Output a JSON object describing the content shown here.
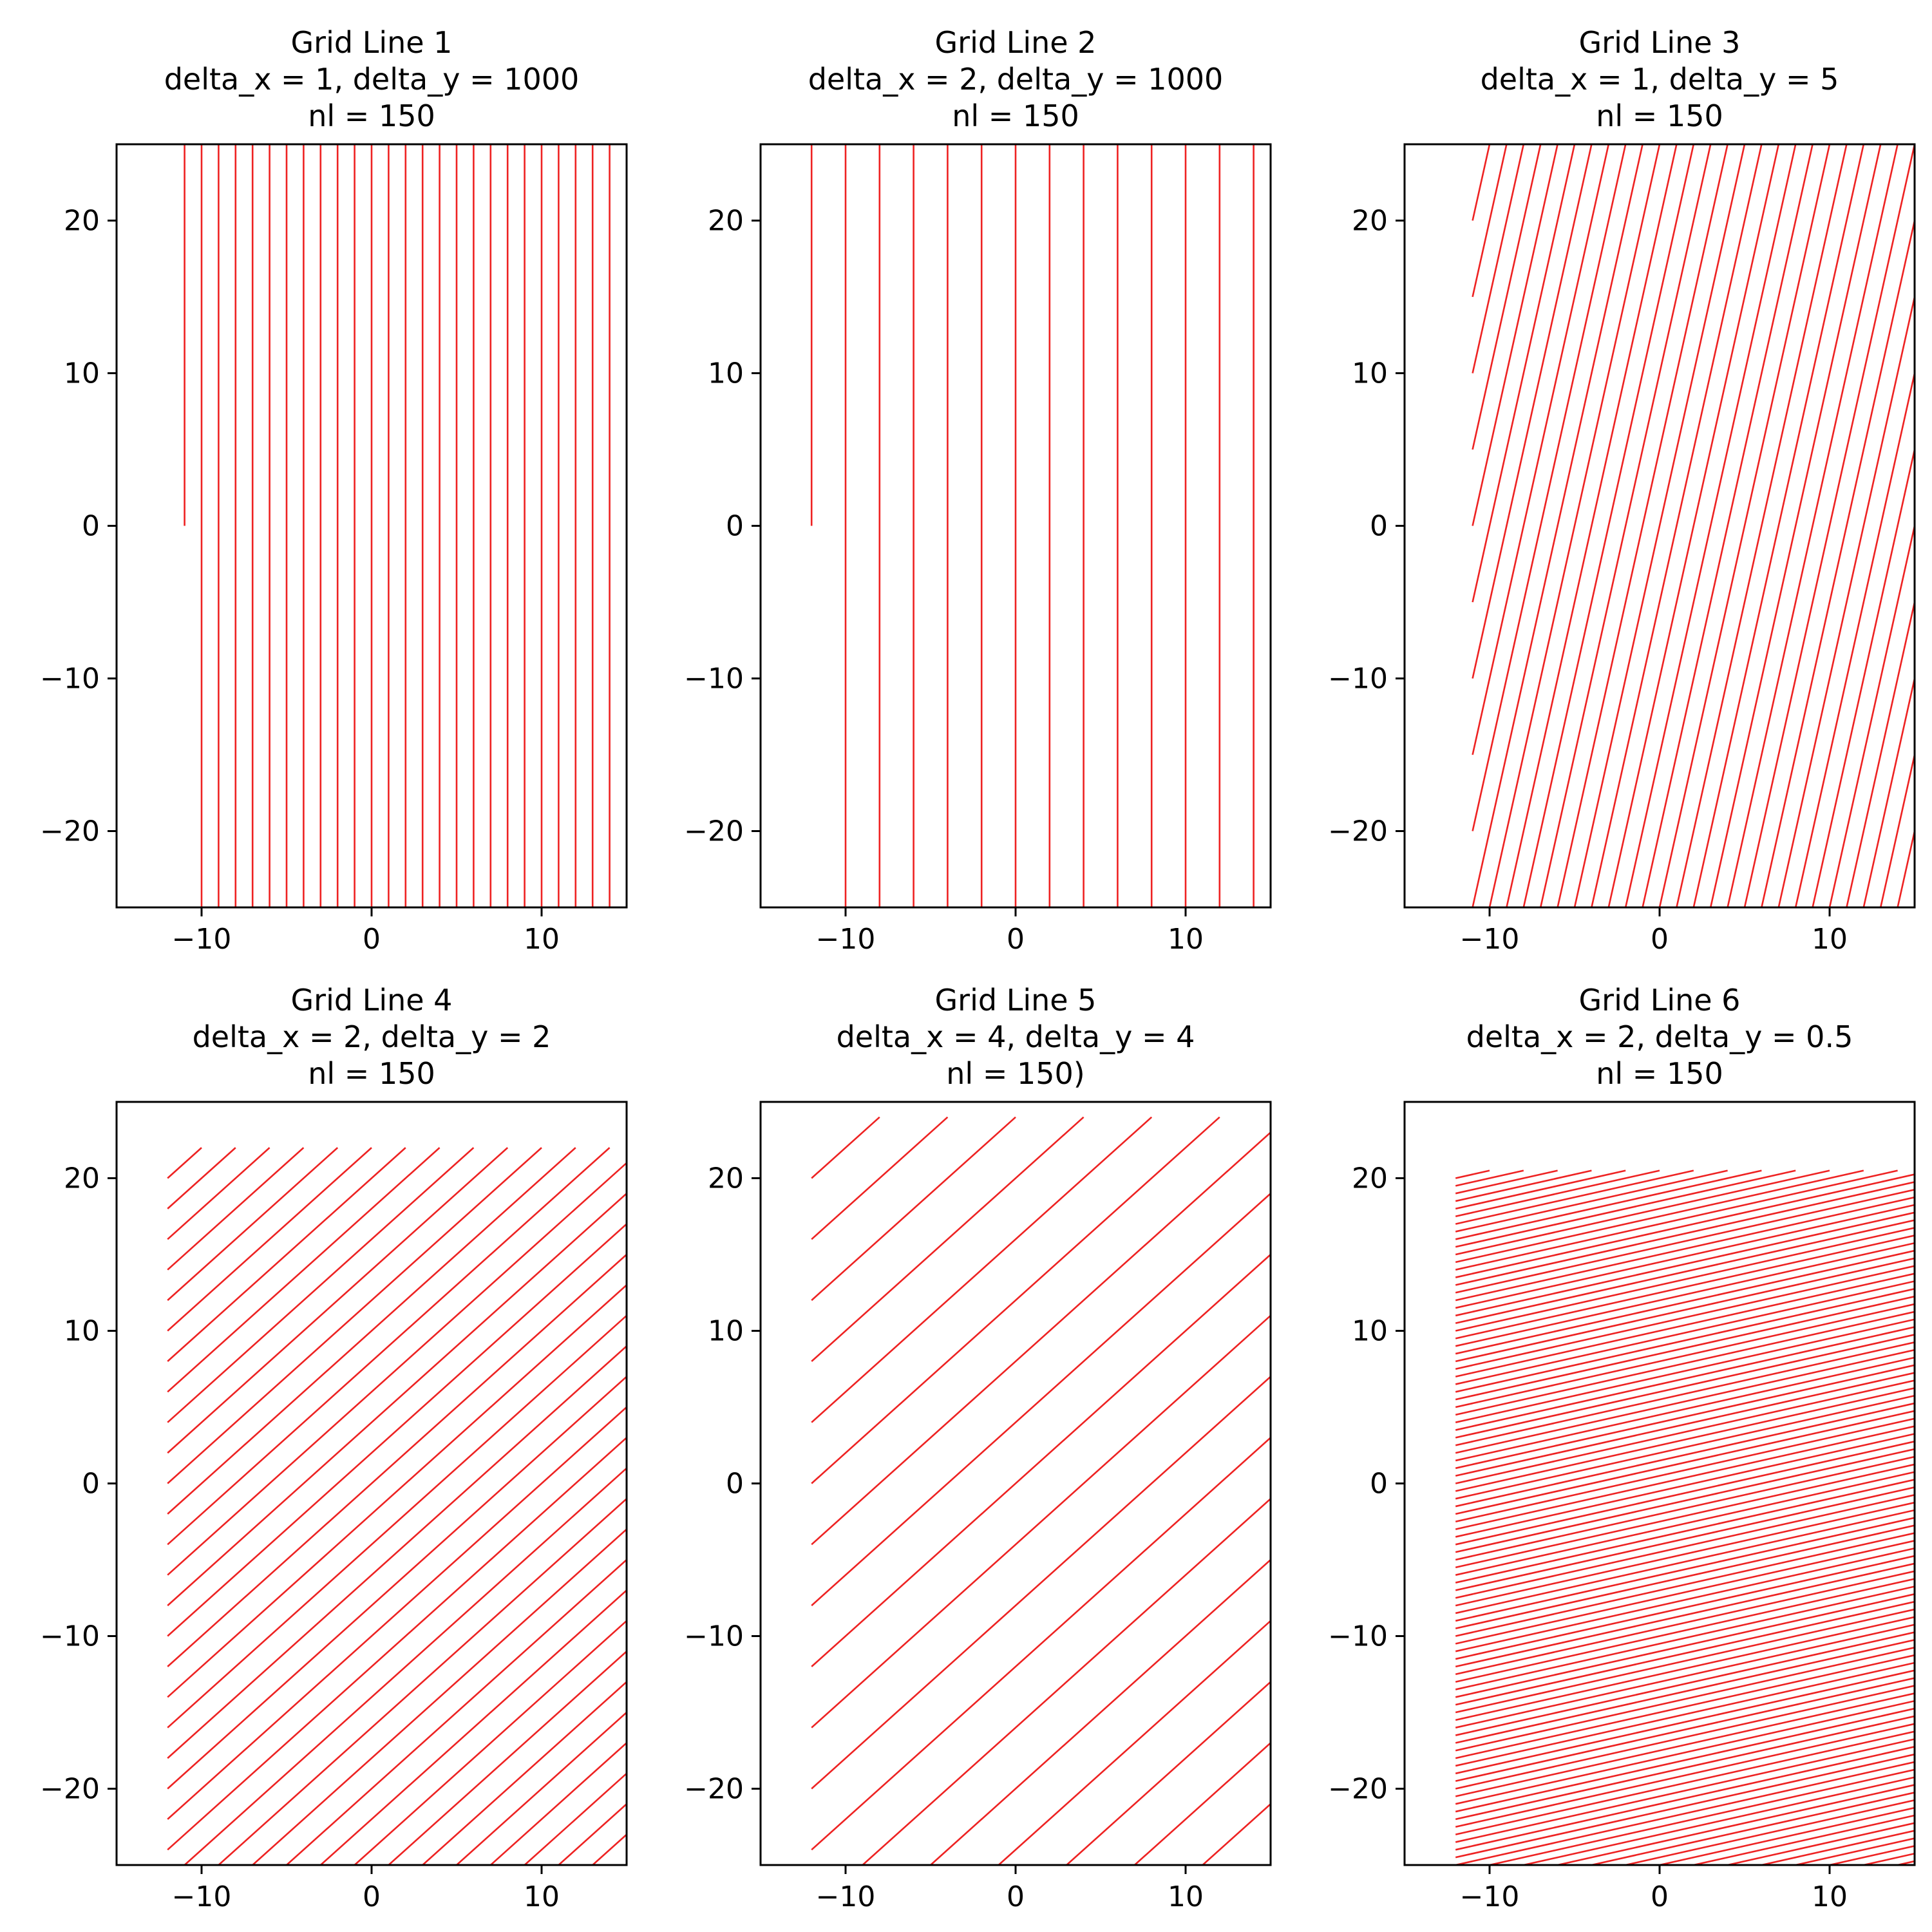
{
  "chart_data": [
    {
      "type": "line",
      "title": [
        "Grid Line 1",
        "delta_x = 1, delta_y = 1000",
        "nl = 150"
      ],
      "xlim": [
        -15,
        15
      ],
      "ylim": [
        -25,
        25
      ],
      "xticks": [
        {
          "value": -10,
          "label": "−10"
        },
        {
          "value": 0,
          "label": "0"
        },
        {
          "value": 10,
          "label": "10"
        }
      ],
      "yticks": [
        {
          "value": -20,
          "label": "−20"
        },
        {
          "value": -10,
          "label": "−10"
        },
        {
          "value": 0,
          "label": "0"
        },
        {
          "value": 10,
          "label": "10"
        },
        {
          "value": 20,
          "label": "20"
        }
      ],
      "line_color": "#ee2222",
      "grid": {
        "x0": -11,
        "y0": 0,
        "y_max": 25,
        "delta_x": 1,
        "delta_y": 1000,
        "x_max": 15
      },
      "grid_on": false
    },
    {
      "type": "line",
      "title": [
        "Grid Line 2",
        "delta_x = 2, delta_y = 1000",
        "nl = 150"
      ],
      "xlim": [
        -15,
        15
      ],
      "ylim": [
        -25,
        25
      ],
      "xticks": [
        {
          "value": -10,
          "label": "−10"
        },
        {
          "value": 0,
          "label": "0"
        },
        {
          "value": 10,
          "label": "10"
        }
      ],
      "yticks": [
        {
          "value": -20,
          "label": "−20"
        },
        {
          "value": -10,
          "label": "−10"
        },
        {
          "value": 0,
          "label": "0"
        },
        {
          "value": 10,
          "label": "10"
        },
        {
          "value": 20,
          "label": "20"
        }
      ],
      "line_color": "#ee2222",
      "grid": {
        "x0": -12,
        "y0": 0,
        "y_max": 25,
        "delta_x": 2,
        "delta_y": 1000,
        "x_max": 15
      },
      "grid_on": false
    },
    {
      "type": "line",
      "title": [
        "Grid Line 3",
        "delta_x = 1, delta_y = 5",
        "nl = 150"
      ],
      "xlim": [
        -15,
        15
      ],
      "ylim": [
        -25,
        25
      ],
      "xticks": [
        {
          "value": -10,
          "label": "−10"
        },
        {
          "value": 0,
          "label": "0"
        },
        {
          "value": 10,
          "label": "10"
        }
      ],
      "yticks": [
        {
          "value": -20,
          "label": "−20"
        },
        {
          "value": -10,
          "label": "−10"
        },
        {
          "value": 0,
          "label": "0"
        },
        {
          "value": 10,
          "label": "10"
        },
        {
          "value": 20,
          "label": "20"
        }
      ],
      "line_color": "#ee2222",
      "grid": {
        "x0": -11,
        "y0": 20,
        "y_max": 25,
        "delta_x": 1,
        "delta_y": 5,
        "x_max": 15
      },
      "grid_on": false
    },
    {
      "type": "line",
      "title": [
        "Grid Line 4",
        "delta_x = 2, delta_y = 2",
        "nl = 150"
      ],
      "xlim": [
        -15,
        15
      ],
      "ylim": [
        -25,
        25
      ],
      "xticks": [
        {
          "value": -10,
          "label": "−10"
        },
        {
          "value": 0,
          "label": "0"
        },
        {
          "value": 10,
          "label": "10"
        }
      ],
      "yticks": [
        {
          "value": -20,
          "label": "−20"
        },
        {
          "value": -10,
          "label": "−10"
        },
        {
          "value": 0,
          "label": "0"
        },
        {
          "value": 10,
          "label": "10"
        },
        {
          "value": 20,
          "label": "20"
        }
      ],
      "line_color": "#ee2222",
      "grid": {
        "x0": -12,
        "y0": 20,
        "y_max": 22,
        "delta_x": 2,
        "delta_y": 2,
        "x_max": 15
      },
      "grid_on": false
    },
    {
      "type": "line",
      "title": [
        "Grid Line 5",
        "delta_x = 4, delta_y = 4",
        "nl = 150)"
      ],
      "xlim": [
        -15,
        15
      ],
      "ylim": [
        -25,
        25
      ],
      "xticks": [
        {
          "value": -10,
          "label": "−10"
        },
        {
          "value": 0,
          "label": "0"
        },
        {
          "value": 10,
          "label": "10"
        }
      ],
      "yticks": [
        {
          "value": -20,
          "label": "−20"
        },
        {
          "value": -10,
          "label": "−10"
        },
        {
          "value": 0,
          "label": "0"
        },
        {
          "value": 10,
          "label": "10"
        },
        {
          "value": 20,
          "label": "20"
        }
      ],
      "line_color": "#ee2222",
      "grid": {
        "x0": -12,
        "y0": 20,
        "y_max": 24,
        "delta_x": 4,
        "delta_y": 4,
        "x_max": 15
      },
      "grid_on": false
    },
    {
      "type": "line",
      "title": [
        "Grid Line 6",
        "delta_x = 2, delta_y = 0.5",
        "nl = 150"
      ],
      "xlim": [
        -15,
        15
      ],
      "ylim": [
        -25,
        25
      ],
      "xticks": [
        {
          "value": -10,
          "label": "−10"
        },
        {
          "value": 0,
          "label": "0"
        },
        {
          "value": 10,
          "label": "10"
        }
      ],
      "yticks": [
        {
          "value": -20,
          "label": "−20"
        },
        {
          "value": -10,
          "label": "−10"
        },
        {
          "value": 0,
          "label": "0"
        },
        {
          "value": 10,
          "label": "10"
        },
        {
          "value": 20,
          "label": "20"
        }
      ],
      "line_color": "#ee2222",
      "grid": {
        "x0": -12,
        "y0": 20,
        "y_max": 20.5,
        "delta_x": 2,
        "delta_y": 0.5,
        "x_max": 15
      },
      "grid_on": false
    }
  ]
}
